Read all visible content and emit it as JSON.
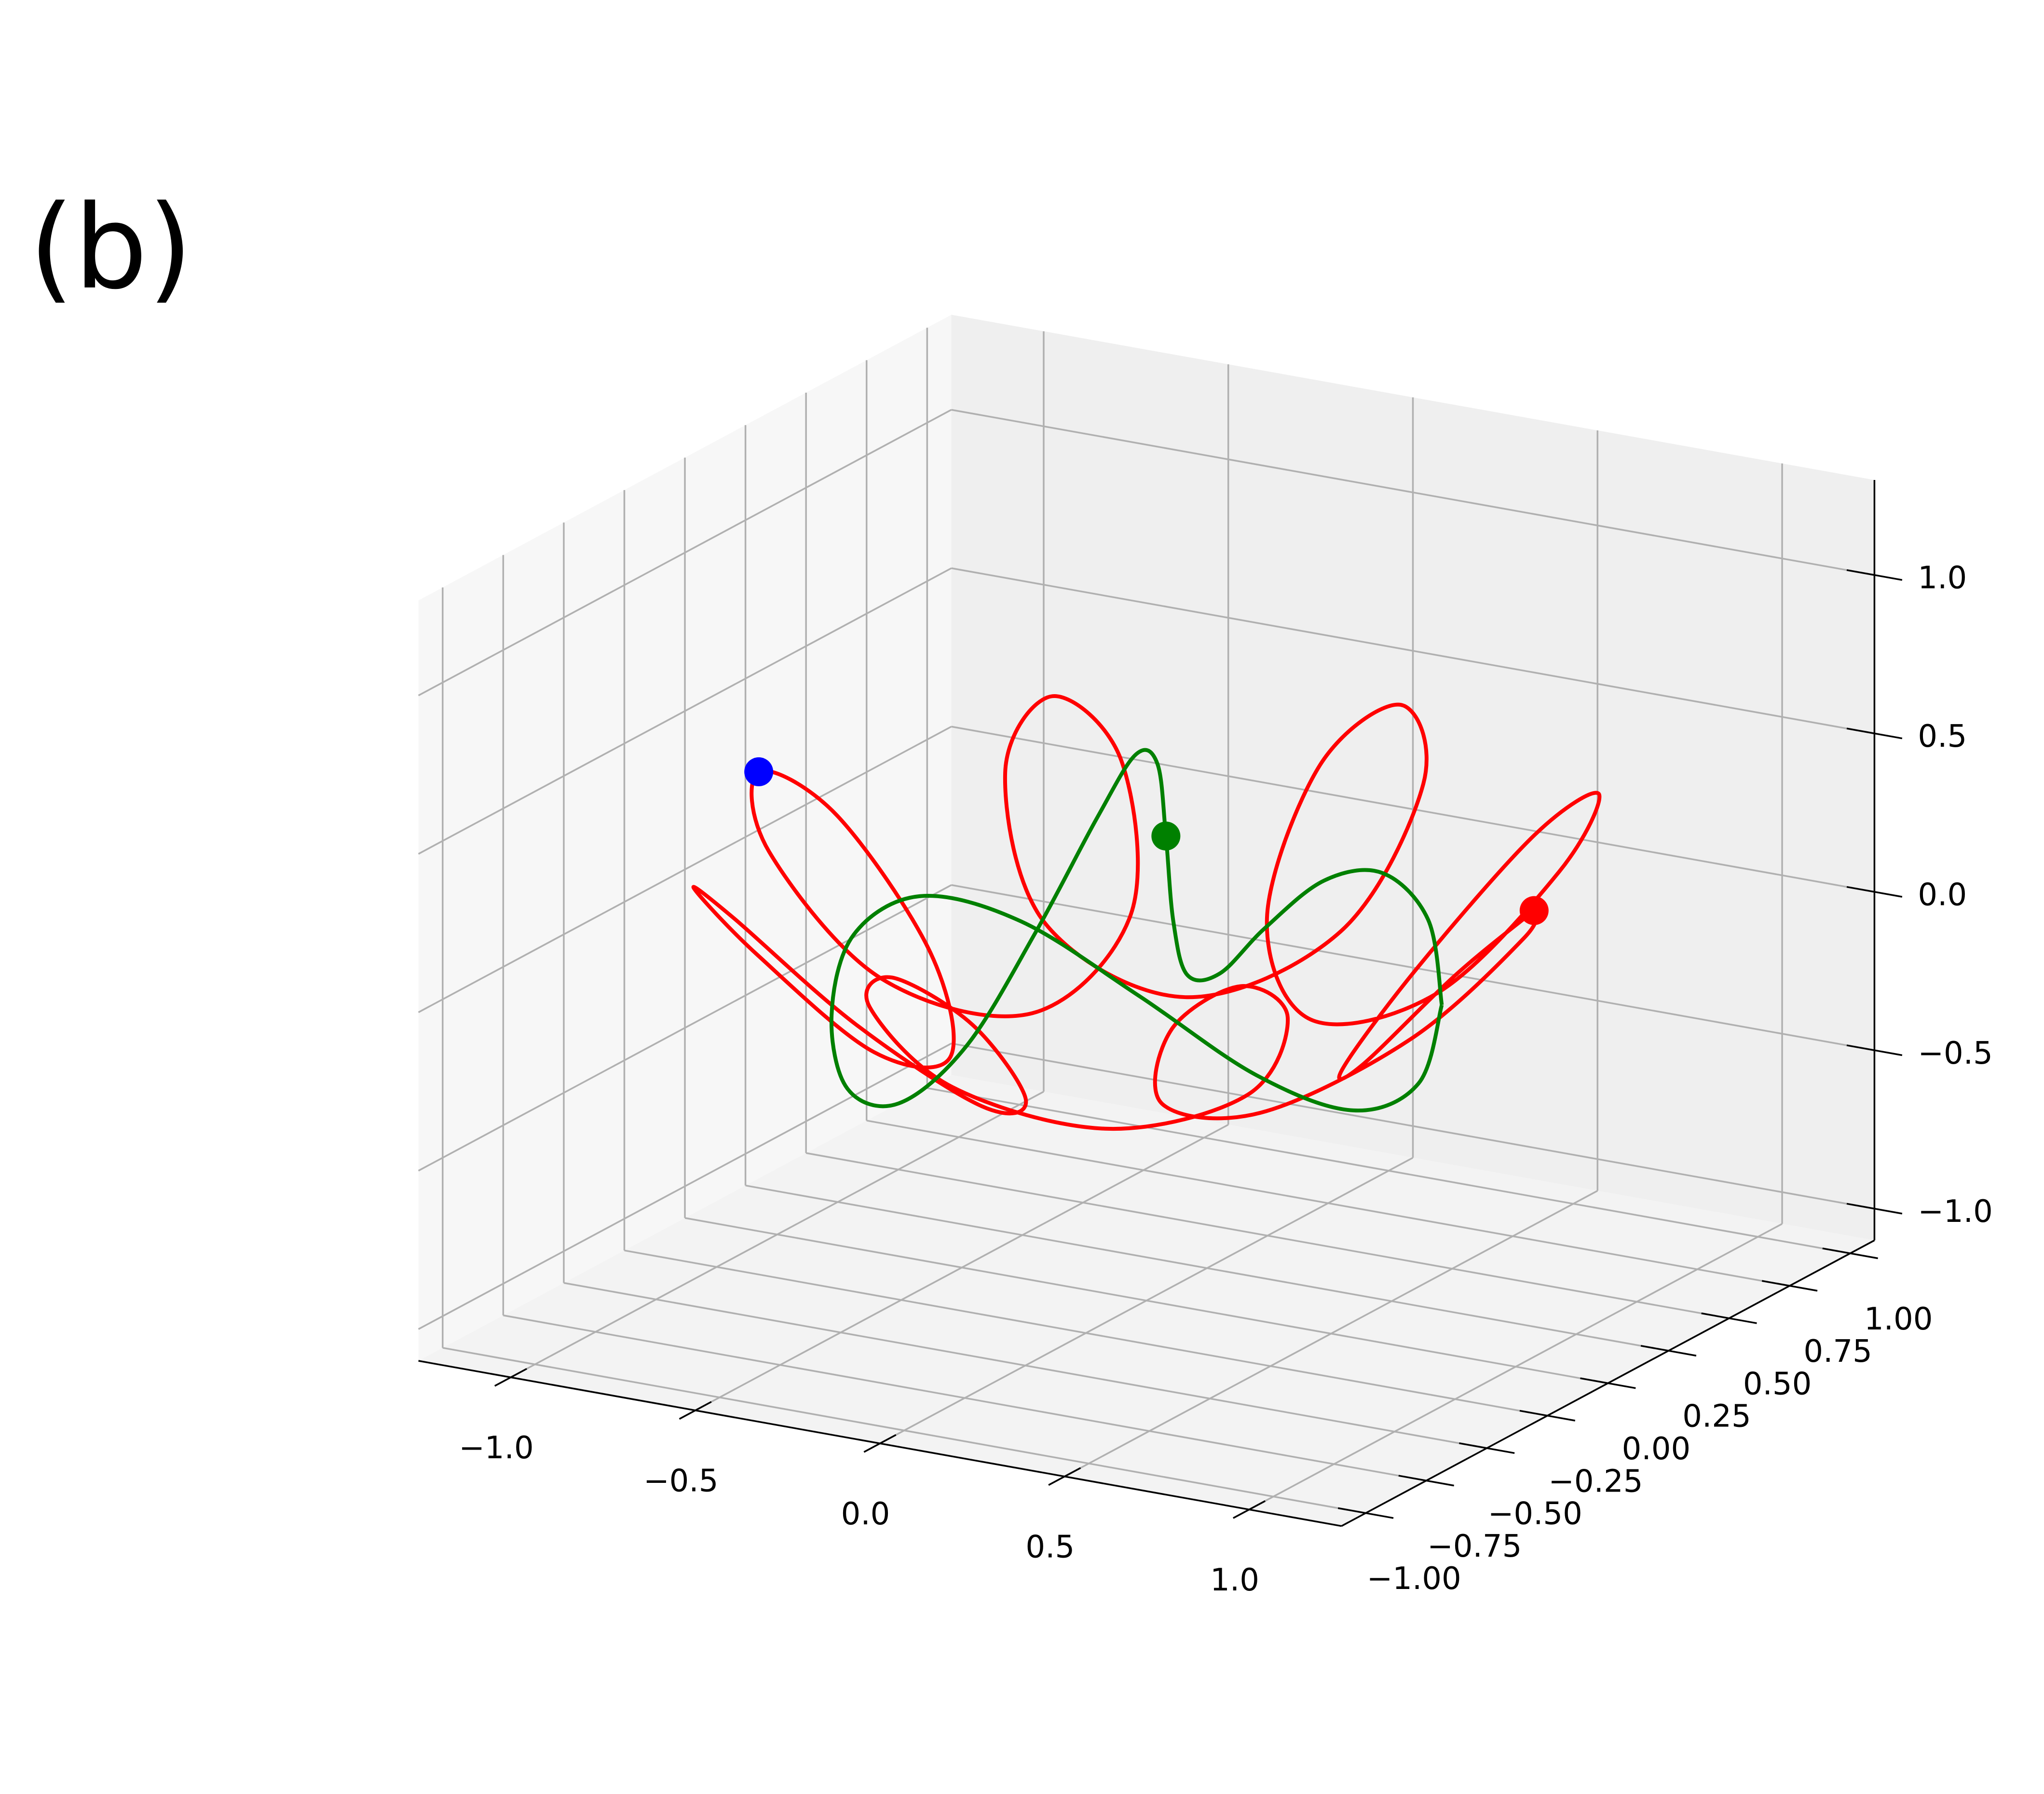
{
  "chart_data": {
    "type": "line3d",
    "label": "(b)",
    "xlim": [
      -1.25,
      1.25
    ],
    "ylim": [
      -1.1,
      1.1
    ],
    "zlim": [
      -1.1,
      1.3
    ],
    "xticks": [
      {
        "value": -1,
        "label": "−1.0"
      },
      {
        "value": -0.5,
        "label": "−0.5"
      },
      {
        "value": 0,
        "label": "0.0"
      },
      {
        "value": 0.5,
        "label": "0.5"
      },
      {
        "value": 1,
        "label": "1.0"
      }
    ],
    "yticks": [
      {
        "value": -1,
        "label": "−1.00"
      },
      {
        "value": -0.75,
        "label": "−0.75"
      },
      {
        "value": -0.5,
        "label": "−0.50"
      },
      {
        "value": -0.25,
        "label": "−0.25"
      },
      {
        "value": 0,
        "label": "0.00"
      },
      {
        "value": 0.25,
        "label": "0.25"
      },
      {
        "value": 0.5,
        "label": "0.50"
      },
      {
        "value": 0.75,
        "label": "0.75"
      },
      {
        "value": 1,
        "label": "1.00"
      }
    ],
    "zticks": [
      {
        "value": -1,
        "label": "−1.0"
      },
      {
        "value": -0.5,
        "label": "−0.5"
      },
      {
        "value": 0,
        "label": "0.0"
      },
      {
        "value": 0.5,
        "label": "0.5"
      },
      {
        "value": 1,
        "label": "1.0"
      }
    ],
    "grid": true,
    "series": [
      {
        "color": "#ff0000",
        "x": [
          1.05,
          0.93,
          0.65,
          0.42,
          0.39,
          0.56,
          0.74,
          0.75,
          0.53,
          0.17,
          -0.1,
          -0.14,
          0,
          0.14,
          0.1,
          -0.17,
          -0.53,
          -0.75,
          -0.74,
          -0.56,
          -0.39,
          -0.42,
          -0.65,
          -0.93,
          -1.05,
          -0.93,
          -0.65,
          -0.42,
          -0.39,
          -0.56,
          -0.74,
          -0.75,
          -0.53,
          -0.17,
          0.1,
          0.14,
          0,
          -0.14,
          -0.1,
          0.17,
          0.53,
          0.75,
          0.74,
          0.56,
          0.39,
          0.42,
          0.65,
          0.93,
          1.05
        ],
        "y": [
          0,
          -0.14,
          -0.1,
          0.17,
          0.53,
          0.75,
          0.74,
          0.56,
          0.39,
          0.42,
          0.65,
          0.93,
          1.05,
          0.93,
          0.65,
          0.42,
          0.39,
          0.56,
          0.74,
          0.75,
          0.53,
          0.17,
          -0.1,
          -0.14,
          0,
          0.14,
          0.1,
          -0.17,
          -0.53,
          -0.75,
          -0.74,
          -0.56,
          -0.39,
          -0.42,
          -0.65,
          -0.93,
          -1.05,
          -0.93,
          -0.65,
          -0.42,
          -0.39,
          -0.56,
          -0.74,
          -0.75,
          -0.53,
          -0.17,
          0.1,
          0.14,
          0
        ],
        "z": [
          0.35,
          0.18,
          -0.18,
          -0.35,
          -0.18,
          0.18,
          0.35,
          0.18,
          -0.18,
          -0.35,
          -0.18,
          0.18,
          0.35,
          0.18,
          -0.18,
          -0.35,
          -0.18,
          0.18,
          0.35,
          0.18,
          -0.18,
          -0.35,
          -0.18,
          0.18,
          0.35,
          0.18,
          -0.18,
          -0.35,
          -0.18,
          0.18,
          0.35,
          0.18,
          -0.18,
          -0.35,
          -0.18,
          0.18,
          0.35,
          0.18,
          -0.18,
          -0.35,
          -0.18,
          0.18,
          0.35,
          0.18,
          -0.18,
          -0.35,
          -0.18,
          0.18,
          0.35
        ]
      },
      {
        "color": "#008000",
        "x": [
          0.8,
          0.75,
          0.6,
          0.39,
          0.15,
          -0.07,
          -0.25,
          -0.36,
          -0.4,
          -0.39,
          -0.35,
          -0.31,
          -0.3,
          -0.31,
          -0.35,
          -0.39,
          -0.4,
          -0.36,
          -0.25,
          -0.07,
          0.15,
          0.39,
          0.6,
          0.75,
          0.8
        ],
        "y": [
          0,
          0.02,
          0.06,
          0.14,
          0.26,
          0.41,
          0.55,
          0.66,
          0.69,
          0.64,
          0.49,
          0.27,
          0,
          -0.27,
          -0.49,
          -0.64,
          -0.69,
          -0.66,
          -0.55,
          -0.41,
          -0.26,
          -0.14,
          -0.06,
          -0.02,
          0
        ],
        "z": [
          0,
          0.25,
          0.35,
          0.25,
          0,
          -0.25,
          -0.35,
          -0.25,
          0,
          0.25,
          0.35,
          0.25,
          0,
          -0.25,
          -0.35,
          -0.25,
          0,
          0.25,
          0.35,
          0.25,
          0,
          -0.25,
          -0.35,
          -0.25,
          0
        ]
      }
    ],
    "points": [
      {
        "color": "#0000ff",
        "x": -1.05,
        "y": 0,
        "z": 0.35
      },
      {
        "color": "#008000",
        "x": -0.4,
        "y": 0.69,
        "z": 0
      },
      {
        "color": "#ff0000",
        "x": 1.05,
        "y": 0,
        "z": 0.35
      }
    ]
  }
}
